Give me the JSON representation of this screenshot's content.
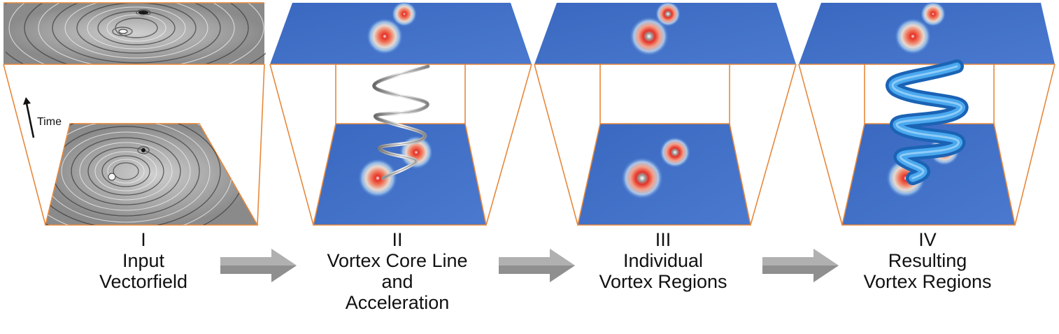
{
  "figure": {
    "time_label": "Time",
    "stages": [
      {
        "numeral": "I",
        "caption_lines": [
          "Input",
          "Vectorfield"
        ],
        "visualization": "grayscale-lic-texture"
      },
      {
        "numeral": "II",
        "caption_lines": [
          "Vortex Core Line",
          "and",
          "Acceleration"
        ],
        "visualization": "core-line-with-acceleration"
      },
      {
        "numeral": "III",
        "caption_lines": [
          "Individual",
          "Vortex Regions"
        ],
        "visualization": "individual-vortex-regions"
      },
      {
        "numeral": "IV",
        "caption_lines": [
          "Resulting",
          "Vortex Regions"
        ],
        "visualization": "resulting-vortex-tube"
      }
    ],
    "colors": {
      "frame_edge": "#e8883a",
      "field_blue": "#3f6fc4",
      "hot_red": "#e8352a",
      "tube_blue": "#2c8ed8",
      "arrow_gray": "#8f8f8f"
    }
  }
}
